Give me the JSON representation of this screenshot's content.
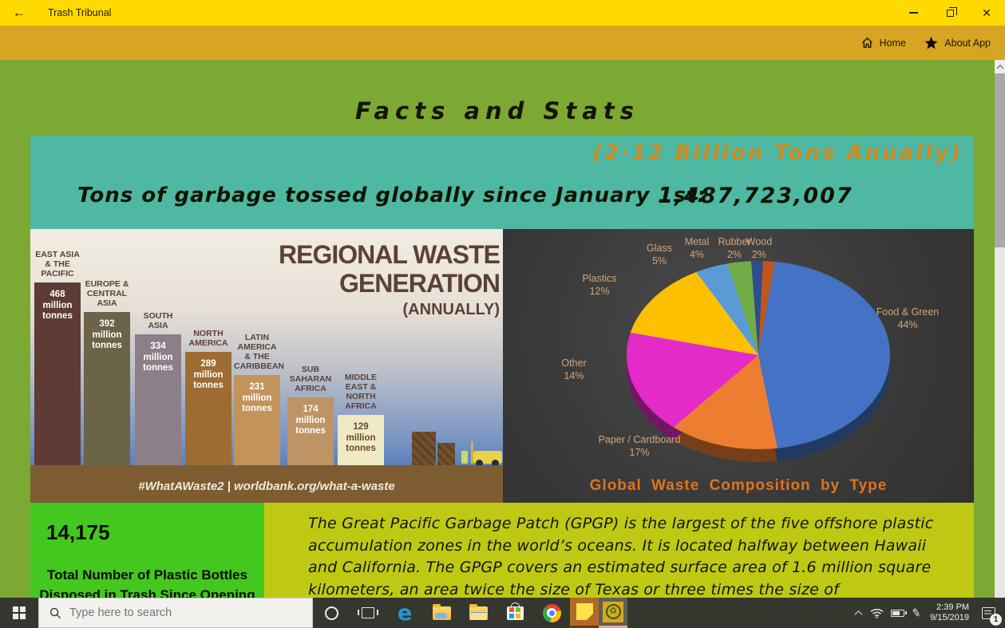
{
  "window": {
    "title": "Trash Tribunal",
    "back_glyph": "←",
    "close_glyph": "✕"
  },
  "navbar": {
    "home_label": "Home",
    "about_label": "About App"
  },
  "page": {
    "title": "Facts and Stats"
  },
  "banner": {
    "annual_note": "(2·12 Billion Tons Anually)",
    "counter_label": "Tons of garbage tossed globally since January 1st:",
    "counter_value": "1,487,723,007"
  },
  "chart_data": [
    {
      "type": "bar",
      "title": "REGIONAL WASTE GENERATION (ANNUALLY)",
      "categories": [
        "East Asia & the Pacific",
        "Europe & Central Asia",
        "South Asia",
        "North America",
        "Latin America & the Caribbean",
        "Sub Saharan Africa",
        "Middle East & North Africa"
      ],
      "values": [
        468,
        392,
        334,
        289,
        231,
        174,
        129
      ],
      "unit": "million tonnes",
      "footer": "#WhatAWaste2 | worldbank.org/what-a-waste",
      "legend_position": "none",
      "grid": false
    },
    {
      "type": "pie",
      "title": "Global Waste Composition by Type",
      "categories": [
        "Food & Green",
        "Paper / Cardboard",
        "Other",
        "Plastics",
        "Glass",
        "Metal",
        "Rubber",
        "Wood"
      ],
      "values": [
        44,
        17,
        14,
        12,
        5,
        4,
        2,
        2
      ],
      "colors": [
        "#4472C4",
        "#ED7D31",
        "#E32BC8",
        "#FFC000",
        "#5B9BD5",
        "#70AD47",
        "#2E4D8E",
        "#C0561B"
      ],
      "legend_position": "labels-around-pie"
    }
  ],
  "regional_chart": {
    "title_line1": "REGIONAL WASTE",
    "title_line2": "GENERATION",
    "subtitle": "(ANNUALLY)",
    "bars": [
      {
        "label": "EAST ASIA\n& THE\nPACIFIC",
        "value_label": "468\nmillion\ntonnes",
        "color": "#5E3B35",
        "value_color": "#FFFFFF"
      },
      {
        "label": "EUROPE &\nCENTRAL\nASIA",
        "value_label": "392\nmillion\ntonnes",
        "color": "#6C6449",
        "value_color": "#FFFFFF"
      },
      {
        "label": "SOUTH\nASIA",
        "value_label": "334\nmillion\ntonnes",
        "color": "#8C7F88",
        "value_color": "#FFFFFF"
      },
      {
        "label": "NORTH\nAMERICA",
        "value_label": "289\nmillion\ntonnes",
        "color": "#9E6C33",
        "value_color": "#FFFFFF"
      },
      {
        "label": "LATIN\nAMERICA\n& THE\nCARIBBEAN",
        "value_label": "231\nmillion\ntonnes",
        "color": "#C2945C",
        "value_color": "#FFFFFF"
      },
      {
        "label": "SUB\nSAHARAN\nAFRICA",
        "value_label": "174\nmillion\ntonnes",
        "color": "#BE9464",
        "value_color": "#FFFFFF"
      },
      {
        "label": "MIDDLE\nEAST &\nNORTH\nAFRICA",
        "value_label": "129\nmillion\ntonnes",
        "color": "#EFEAC4",
        "value_color": "#6B4A2A"
      }
    ]
  },
  "pie_chart": {
    "title": "Global Waste Composition by Type",
    "labels": [
      {
        "text": "Glass\n5%"
      },
      {
        "text": "Metal\n4%"
      },
      {
        "text": "Rubber\n2%"
      },
      {
        "text": "Wood\n2%"
      },
      {
        "text": "Plastics\n12%"
      },
      {
        "text": "Other\n14%"
      },
      {
        "text": "Paper / Cardboard\n17%"
      },
      {
        "text": "Food & Green\n44%"
      }
    ]
  },
  "stats_box": {
    "count": "14,175",
    "caption": "Total Number of Plastic Bottles\nDisposed in Trash Since Opening"
  },
  "gpgp_paragraph": "The Great Pacific Garbage Patch (GPGP) is the largest of the five offshore plastic accumulation zones in the world’s oceans. It is located halfway between Hawaii and California. The GPGP covers an estimated surface area of 1.6 million square kilometers, an area twice the size of Texas or three times the size of",
  "taskbar": {
    "search_placeholder": "Type here to search",
    "time": "2:39 PM",
    "date": "9/15/2019",
    "notification_badge": "1"
  },
  "colors": {
    "titlebar": "#FFDA00",
    "navbar": "#D7A522",
    "page_background": "#7CA933",
    "banner": "#4EB8A2",
    "accent_orange": "#D08A1F",
    "stats_green": "#44C71E",
    "bottom_band": "#BFC914",
    "taskbar": "#35372E"
  }
}
